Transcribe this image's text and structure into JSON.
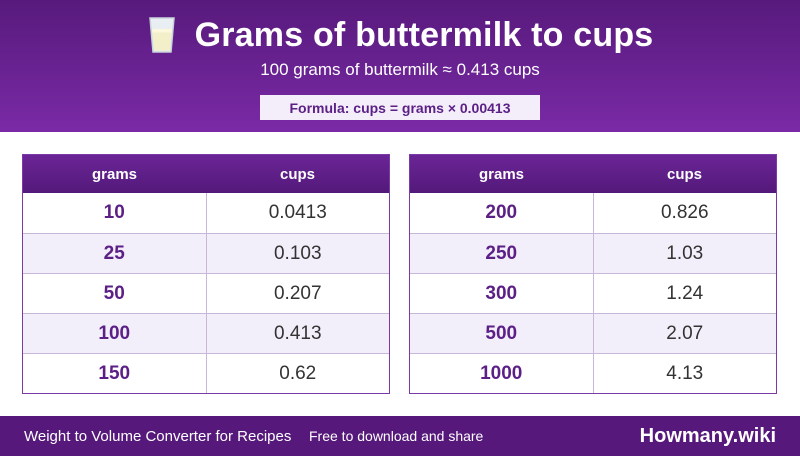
{
  "header": {
    "icon": "milk-glass-icon",
    "title": "Grams of buttermilk to cups",
    "subtitle": "100 grams of buttermilk ≈ 0.413 cups",
    "formula": "Formula: cups = grams × 0.00413"
  },
  "tables": [
    {
      "headers": [
        "grams",
        "cups"
      ],
      "rows": [
        {
          "grams": "10",
          "cups": "0.0413"
        },
        {
          "grams": "25",
          "cups": "0.103"
        },
        {
          "grams": "50",
          "cups": "0.207"
        },
        {
          "grams": "100",
          "cups": "0.413"
        },
        {
          "grams": "150",
          "cups": "0.62"
        }
      ]
    },
    {
      "headers": [
        "grams",
        "cups"
      ],
      "rows": [
        {
          "grams": "200",
          "cups": "0.826"
        },
        {
          "grams": "250",
          "cups": "1.03"
        },
        {
          "grams": "300",
          "cups": "1.24"
        },
        {
          "grams": "500",
          "cups": "2.07"
        },
        {
          "grams": "1000",
          "cups": "4.13"
        }
      ]
    }
  ],
  "footer": {
    "left": "Weight to Volume Converter for Recipes",
    "middle": "Free to download and share",
    "brand": "Howmany.wiki"
  },
  "colors": {
    "brand_purple": "#5b1f86",
    "header_gradient_top": "#571a7c",
    "header_gradient_bottom": "#7a2aa6",
    "row_alt": "#f2eefa"
  }
}
